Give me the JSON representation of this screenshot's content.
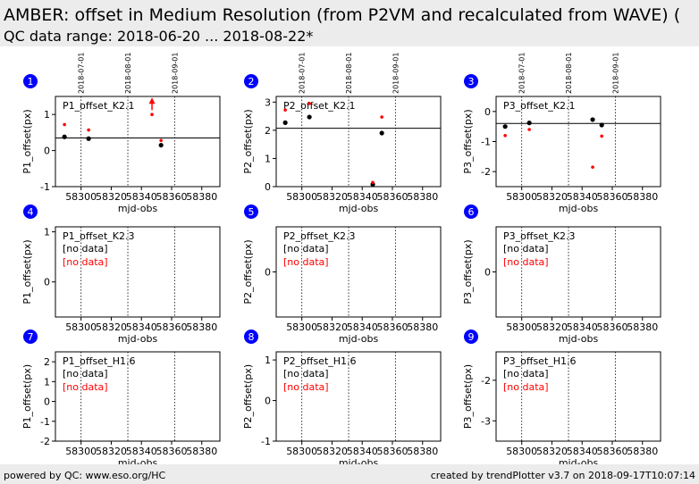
{
  "header": {
    "title": "AMBER: offset in Medium Resolution (from P2VM and recalculated from WAVE) (",
    "subtitle": "QC data range: 2018-06-20 ... 2018-08-22*"
  },
  "footer": {
    "left": "powered by QC: www.eso.org/HC",
    "right": "created by trendPlotter v3.7 on 2018-09-17T10:07:14"
  },
  "colors": {
    "primary": "#000000",
    "secondary": "#ff0000",
    "badge": "#0000ff"
  },
  "chart_data": [
    {
      "type": "scatter",
      "badge": "1",
      "label": "P1_offset_K2.1",
      "xlabel": "mjd-obs",
      "ylabel": "P1_offset(px)",
      "xlim": [
        58283,
        58392
      ],
      "ylim": [
        -1,
        1.5
      ],
      "xticks": [
        58300,
        58320,
        58340,
        58360,
        58380
      ],
      "yticks": [
        -1,
        0,
        1
      ],
      "vlines": [
        {
          "x": 58300,
          "label": "2018-07-01"
        },
        {
          "x": 58331,
          "label": "2018-08-01"
        },
        {
          "x": 58362,
          "label": "2018-09-01"
        }
      ],
      "hline": 0.35,
      "series": [
        {
          "color": "black",
          "x": [
            58289,
            58305,
            58353
          ],
          "y": [
            0.38,
            0.33,
            0.15
          ]
        },
        {
          "color": "red",
          "x": [
            58289,
            58305,
            58347,
            58353
          ],
          "y": [
            0.72,
            0.57,
            1.0,
            0.28
          ]
        }
      ],
      "arrows": [
        {
          "x": 58347,
          "y": 1.32,
          "color": "red"
        }
      ],
      "annotations": []
    },
    {
      "type": "scatter",
      "badge": "2",
      "label": "P2_offset_K2.1",
      "xlabel": "mjd-obs",
      "ylabel": "P2_offset(px)",
      "xlim": [
        58283,
        58392
      ],
      "ylim": [
        0,
        3.2
      ],
      "xticks": [
        58300,
        58320,
        58340,
        58360,
        58380
      ],
      "yticks": [
        0,
        1,
        2,
        3
      ],
      "vlines": [
        {
          "x": 58300,
          "label": "2018-07-01"
        },
        {
          "x": 58331,
          "label": "2018-08-01"
        },
        {
          "x": 58362,
          "label": "2018-09-01"
        }
      ],
      "hline": 2.07,
      "series": [
        {
          "color": "black",
          "x": [
            58289,
            58305,
            58347,
            58353
          ],
          "y": [
            2.27,
            2.47,
            0.08,
            1.9
          ]
        },
        {
          "color": "red",
          "x": [
            58289,
            58305,
            58347,
            58353
          ],
          "y": [
            2.72,
            2.95,
            0.15,
            2.47
          ]
        }
      ],
      "arrows": [],
      "annotations": []
    },
    {
      "type": "scatter",
      "badge": "3",
      "label": "P3_offset_K2.1",
      "xlabel": "mjd-obs",
      "ylabel": "P3_offset(px)",
      "xlim": [
        58283,
        58392
      ],
      "ylim": [
        -2.5,
        0.5
      ],
      "xticks": [
        58300,
        58320,
        58340,
        58360,
        58380
      ],
      "yticks": [
        -2,
        -1,
        0
      ],
      "vlines": [
        {
          "x": 58300,
          "label": "2018-07-01"
        },
        {
          "x": 58331,
          "label": "2018-08-01"
        },
        {
          "x": 58362,
          "label": "2018-09-01"
        }
      ],
      "hline": -0.4,
      "series": [
        {
          "color": "black",
          "x": [
            58289,
            58305,
            58347,
            58353
          ],
          "y": [
            -0.5,
            -0.38,
            -0.27,
            -0.45
          ]
        },
        {
          "color": "red",
          "x": [
            58289,
            58305,
            58347,
            58353
          ],
          "y": [
            -0.8,
            -0.6,
            -1.85,
            -0.82
          ]
        }
      ],
      "arrows": [],
      "annotations": []
    },
    {
      "type": "scatter",
      "badge": "4",
      "label": "P1_offset_K2.3",
      "xlabel": "mjd-obs",
      "ylabel": "P1_offset(px)",
      "xlim": [
        58283,
        58392
      ],
      "ylim": [
        -0.7,
        1.1
      ],
      "xticks": [
        58300,
        58320,
        58340,
        58360,
        58380
      ],
      "yticks": [
        0,
        1
      ],
      "vlines": [
        {
          "x": 58300
        },
        {
          "x": 58331
        },
        {
          "x": 58362
        }
      ],
      "hline": null,
      "series": [],
      "arrows": [],
      "annotations": [
        {
          "text": "[no data]",
          "color": "black"
        },
        {
          "text": "[no data]",
          "color": "red"
        }
      ]
    },
    {
      "type": "scatter",
      "badge": "5",
      "label": "P2_offset_K2.3",
      "xlabel": "mjd-obs",
      "ylabel": "P2_offset(px)",
      "xlim": [
        58283,
        58392
      ],
      "ylim": [
        -1.0,
        1.0
      ],
      "xticks": [
        58300,
        58320,
        58340,
        58360,
        58380
      ],
      "yticks": [
        0
      ],
      "vlines": [
        {
          "x": 58300
        },
        {
          "x": 58331
        },
        {
          "x": 58362
        }
      ],
      "hline": null,
      "series": [],
      "arrows": [],
      "annotations": [
        {
          "text": "[no data]",
          "color": "black"
        },
        {
          "text": "[no data]",
          "color": "red"
        }
      ]
    },
    {
      "type": "scatter",
      "badge": "6",
      "label": "P3_offset_K2.3",
      "xlabel": "mjd-obs",
      "ylabel": "P3_offset(px)",
      "xlim": [
        58283,
        58392
      ],
      "ylim": [
        -1.0,
        1.0
      ],
      "xticks": [
        58300,
        58320,
        58340,
        58360,
        58380
      ],
      "yticks": [
        0
      ],
      "vlines": [
        {
          "x": 58300
        },
        {
          "x": 58331
        },
        {
          "x": 58362
        }
      ],
      "hline": null,
      "series": [],
      "arrows": [],
      "annotations": [
        {
          "text": "[no data]",
          "color": "black"
        },
        {
          "text": "[no data]",
          "color": "red"
        }
      ]
    },
    {
      "type": "scatter",
      "badge": "7",
      "label": "P1_offset_H1.6",
      "xlabel": "mjd-obs",
      "ylabel": "P1_offset(px)",
      "xlim": [
        58283,
        58392
      ],
      "ylim": [
        -2,
        2.5
      ],
      "xticks": [
        58300,
        58320,
        58340,
        58360,
        58380
      ],
      "yticks": [
        -2,
        -1,
        0,
        1,
        2
      ],
      "vlines": [
        {
          "x": 58300
        },
        {
          "x": 58331
        },
        {
          "x": 58362
        }
      ],
      "hline": null,
      "series": [],
      "arrows": [],
      "annotations": [
        {
          "text": "[no data]",
          "color": "black"
        },
        {
          "text": "[no data]",
          "color": "red"
        }
      ]
    },
    {
      "type": "scatter",
      "badge": "8",
      "label": "P2_offset_H1.6",
      "xlabel": "mjd-obs",
      "ylabel": "P2_offset(px)",
      "xlim": [
        58283,
        58392
      ],
      "ylim": [
        -1,
        1.2
      ],
      "xticks": [
        58300,
        58320,
        58340,
        58360,
        58380
      ],
      "yticks": [
        -1,
        0,
        1
      ],
      "vlines": [
        {
          "x": 58300
        },
        {
          "x": 58331
        },
        {
          "x": 58362
        }
      ],
      "hline": null,
      "series": [],
      "arrows": [],
      "annotations": [
        {
          "text": "[no data]",
          "color": "black"
        },
        {
          "text": "[no data]",
          "color": "red"
        }
      ]
    },
    {
      "type": "scatter",
      "badge": "9",
      "label": "P3_offset_H1.6",
      "xlabel": "mjd-obs",
      "ylabel": "P3_offset(px)",
      "xlim": [
        58283,
        58392
      ],
      "ylim": [
        -3.5,
        -1.3
      ],
      "xticks": [
        58300,
        58320,
        58340,
        58360,
        58380
      ],
      "yticks": [
        -3,
        -2
      ],
      "vlines": [
        {
          "x": 58300
        },
        {
          "x": 58331
        },
        {
          "x": 58362
        }
      ],
      "hline": null,
      "series": [],
      "arrows": [],
      "annotations": [
        {
          "text": "[no data]",
          "color": "black"
        },
        {
          "text": "[no data]",
          "color": "red"
        }
      ]
    }
  ]
}
